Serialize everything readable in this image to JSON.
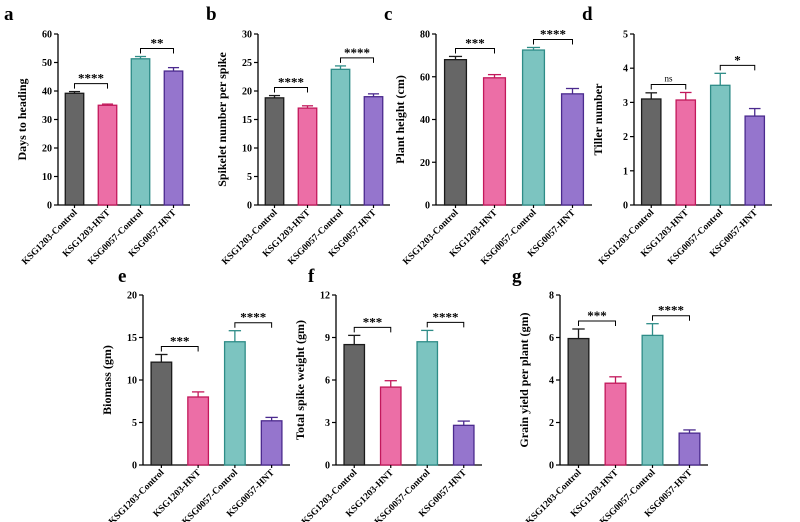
{
  "colors": {
    "KSG1203-Control": {
      "fill": "#666666",
      "edge": "#1a1a1a"
    },
    "KSG1203-HNT": {
      "fill": "#ec6ea6",
      "edge": "#c2185b"
    },
    "KSG0057-Control": {
      "fill": "#7cc4c0",
      "edge": "#2e8c87"
    },
    "KSG0057-HNT": {
      "fill": "#9575cd",
      "edge": "#4b2a8e"
    }
  },
  "chart_data": [
    {
      "panel": "a",
      "type": "bar",
      "ylabel": "Days to heading",
      "ylim": [
        0,
        60
      ],
      "yticks": [
        0,
        10,
        20,
        30,
        40,
        50,
        60
      ],
      "categories": [
        "KSG1203-Control",
        "KSG1203-HNT",
        "KSG0057-Control",
        "KSG0057-HNT"
      ],
      "values": [
        39.2,
        35.0,
        51.3,
        47.0
      ],
      "errors": [
        0.6,
        0.4,
        0.8,
        1.2
      ],
      "significance": [
        {
          "pair": [
            0,
            1
          ],
          "label": "****"
        },
        {
          "pair": [
            2,
            3
          ],
          "label": "**"
        }
      ]
    },
    {
      "panel": "b",
      "type": "bar",
      "ylabel": "Spikelet number per spike",
      "ylim": [
        0,
        30
      ],
      "yticks": [
        0,
        5,
        10,
        15,
        20,
        25,
        30
      ],
      "categories": [
        "KSG1203-Control",
        "KSG1203-HNT",
        "KSG0057-Control",
        "KSG0057-HNT"
      ],
      "values": [
        18.8,
        17.0,
        23.8,
        19.0
      ],
      "errors": [
        0.4,
        0.4,
        0.6,
        0.5
      ],
      "significance": [
        {
          "pair": [
            0,
            1
          ],
          "label": "****"
        },
        {
          "pair": [
            2,
            3
          ],
          "label": "****"
        }
      ]
    },
    {
      "panel": "c",
      "type": "bar",
      "ylabel": "Plant height (cm)",
      "ylim": [
        0,
        80
      ],
      "yticks": [
        0,
        20,
        40,
        60,
        80
      ],
      "categories": [
        "KSG1203-Control",
        "KSG1203-HNT",
        "KSG0057-Control",
        "KSG0057-HNT"
      ],
      "values": [
        68.0,
        59.5,
        72.5,
        52.0
      ],
      "errors": [
        1.5,
        1.5,
        1.2,
        2.5
      ],
      "significance": [
        {
          "pair": [
            0,
            1
          ],
          "label": "***"
        },
        {
          "pair": [
            2,
            3
          ],
          "label": "****"
        }
      ]
    },
    {
      "panel": "d",
      "type": "bar",
      "ylabel": "Tiller number",
      "ylim": [
        0,
        5
      ],
      "yticks": [
        0,
        1,
        2,
        3,
        4,
        5
      ],
      "categories": [
        "KSG1203-Control",
        "KSG1203-HNT",
        "KSG0057-Control",
        "KSG0057-HNT"
      ],
      "values": [
        3.1,
        3.07,
        3.5,
        2.6
      ],
      "errors": [
        0.18,
        0.22,
        0.35,
        0.22
      ],
      "significance": [
        {
          "pair": [
            0,
            1
          ],
          "label": "ns"
        },
        {
          "pair": [
            2,
            3
          ],
          "label": "*"
        }
      ]
    },
    {
      "panel": "e",
      "type": "bar",
      "ylabel": "Biomass (gm)",
      "ylim": [
        0,
        20
      ],
      "yticks": [
        0,
        5,
        10,
        15,
        20
      ],
      "categories": [
        "KSG1203-Control",
        "KSG1203-HNT",
        "KSG0057-Control",
        "KSG0057-HNT"
      ],
      "values": [
        12.1,
        8.0,
        14.5,
        5.2
      ],
      "errors": [
        0.9,
        0.6,
        1.3,
        0.4
      ],
      "significance": [
        {
          "pair": [
            0,
            1
          ],
          "label": "***"
        },
        {
          "pair": [
            2,
            3
          ],
          "label": "****"
        }
      ]
    },
    {
      "panel": "f",
      "type": "bar",
      "ylabel": "Total spike weight (gm)",
      "ylim": [
        0,
        12
      ],
      "yticks": [
        0,
        3,
        6,
        9,
        12
      ],
      "categories": [
        "KSG1203-Control",
        "KSG1203-HNT",
        "KSG0057-Control",
        "KSG0057-HNT"
      ],
      "values": [
        8.5,
        5.5,
        8.7,
        2.8
      ],
      "errors": [
        0.65,
        0.45,
        0.8,
        0.3
      ],
      "significance": [
        {
          "pair": [
            0,
            1
          ],
          "label": "***"
        },
        {
          "pair": [
            2,
            3
          ],
          "label": "****"
        }
      ]
    },
    {
      "panel": "g",
      "type": "bar",
      "ylabel": "Grain yield per plant (gm)",
      "ylim": [
        0,
        8
      ],
      "yticks": [
        0,
        2,
        4,
        6,
        8
      ],
      "categories": [
        "KSG1203-Control",
        "KSG1203-HNT",
        "KSG0057-Control",
        "KSG0057-HNT"
      ],
      "values": [
        5.95,
        3.85,
        6.1,
        1.5
      ],
      "errors": [
        0.45,
        0.3,
        0.55,
        0.15
      ],
      "significance": [
        {
          "pair": [
            0,
            1
          ],
          "label": "***"
        },
        {
          "pair": [
            2,
            3
          ],
          "label": "****"
        }
      ]
    }
  ]
}
